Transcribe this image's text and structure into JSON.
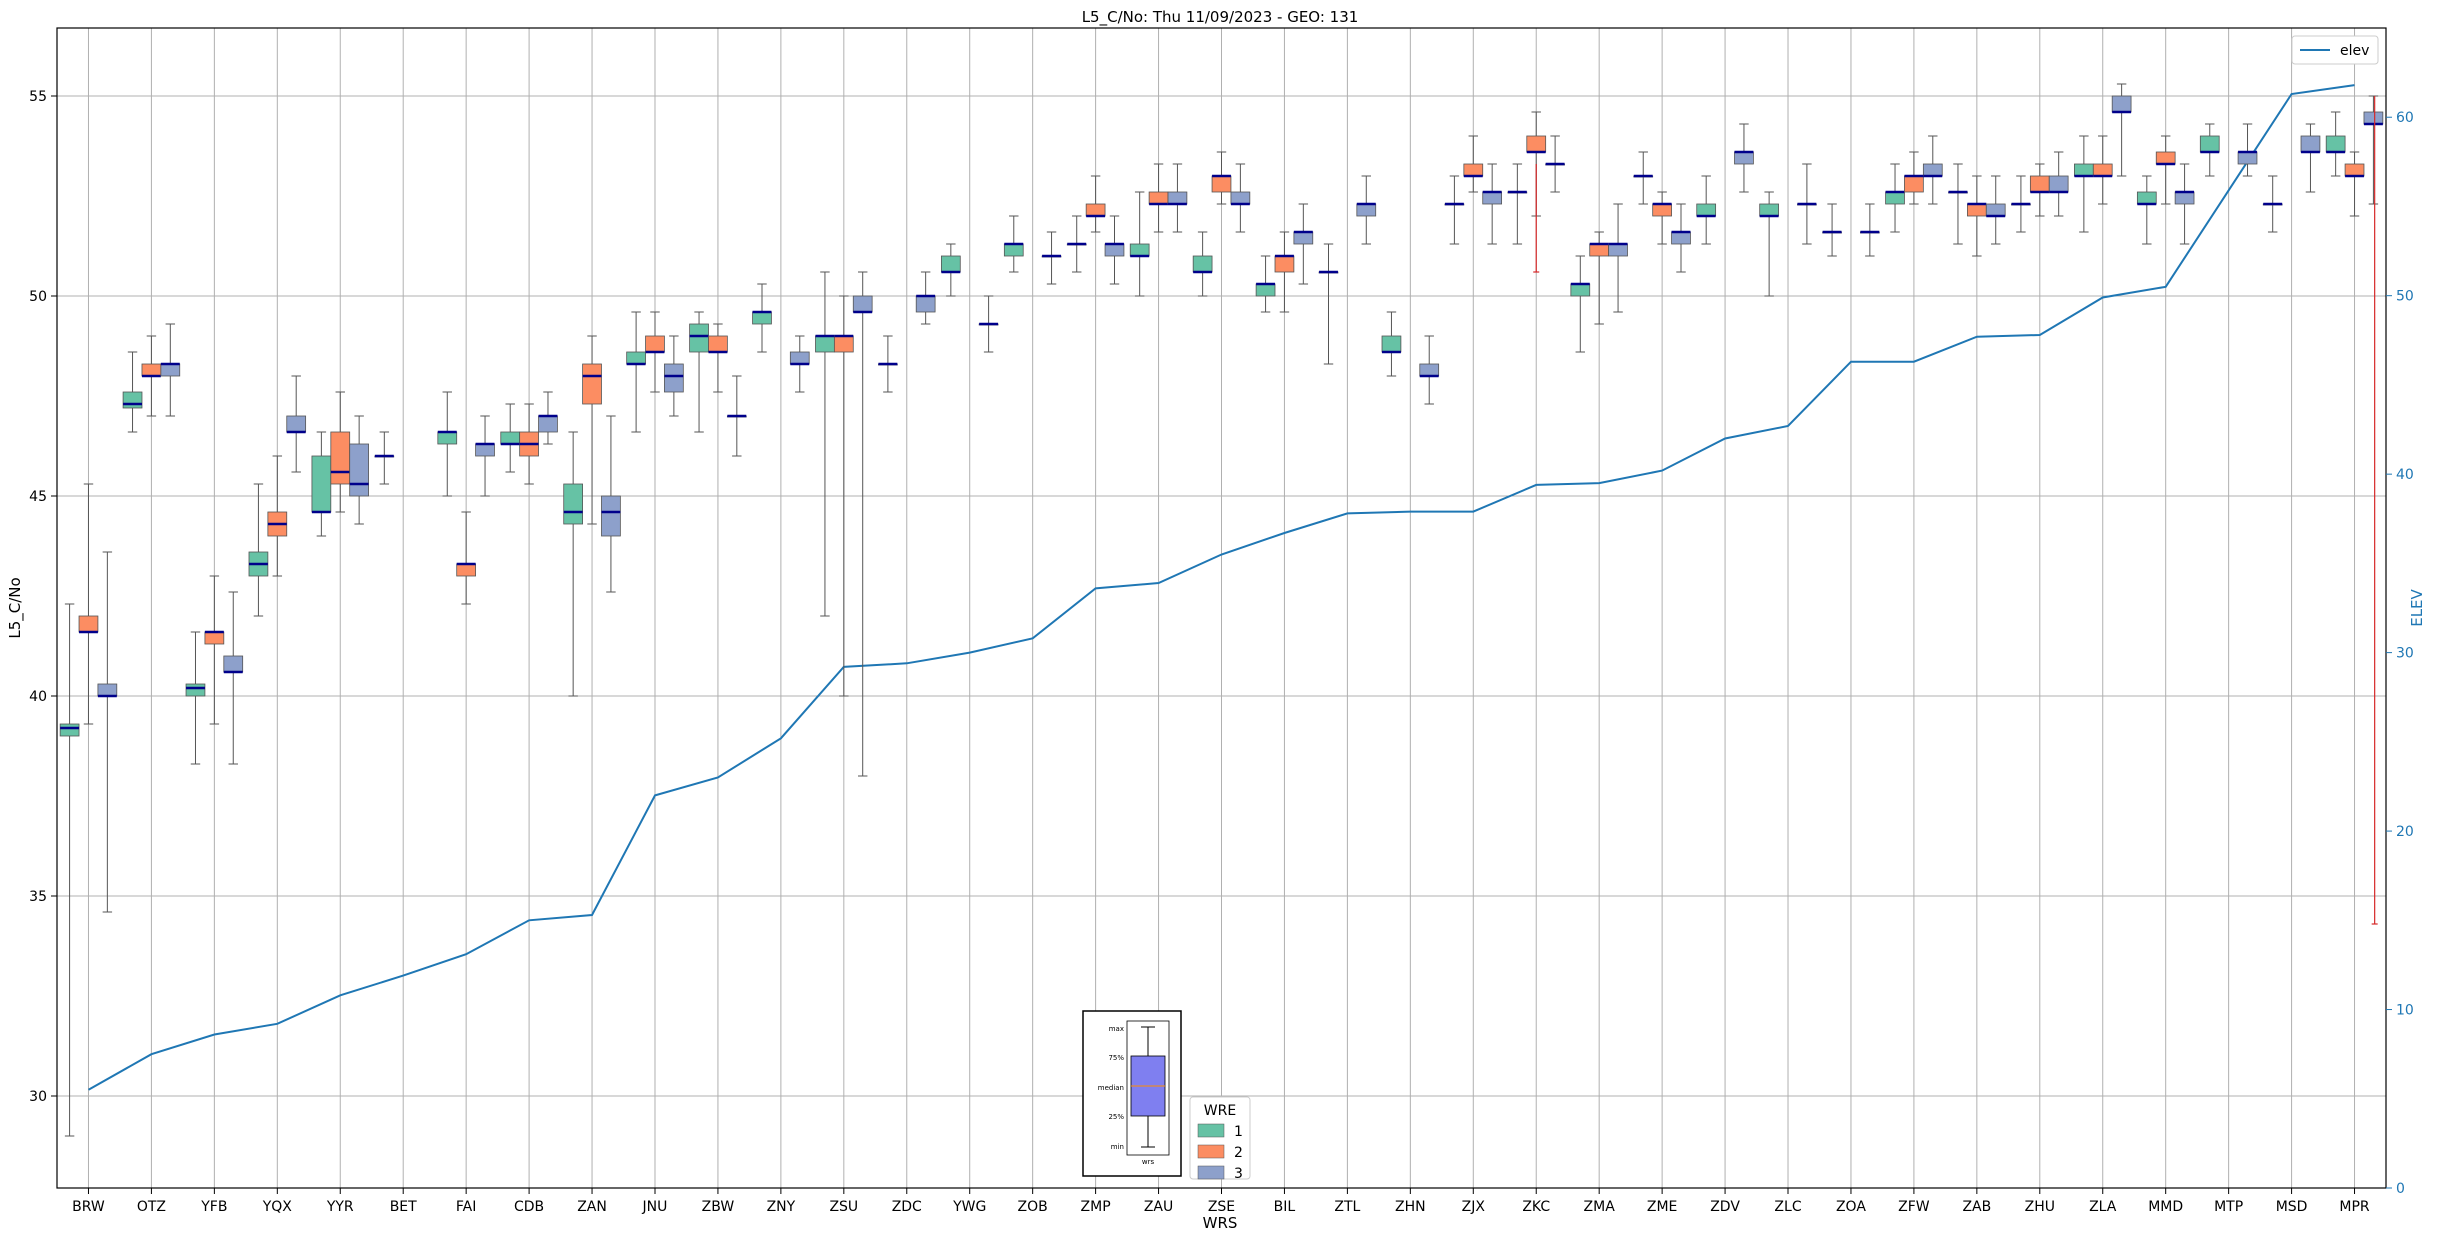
{
  "chart_data": {
    "type": "box",
    "title": "L5_C/No: Thu 11/09/2023 - GEO: 131",
    "xlabel": "WRS",
    "ylabel": "L5_C/No",
    "y2label": "ELEV",
    "ylim": [
      27.7,
      56.7
    ],
    "y2lim": [
      0,
      65
    ],
    "yticks": [
      30,
      35,
      40,
      45,
      50,
      55
    ],
    "y2ticks": [
      0,
      10,
      20,
      30,
      40,
      50,
      60
    ],
    "grid": true,
    "colors": {
      "1": "#66c2a5",
      "2": "#fc8d62",
      "3": "#8da0cb",
      "median": "#00008b",
      "elev": "#1f77b4",
      "whisker": "#555555",
      "outlier_whisker": "#d62728"
    },
    "stations": [
      "BRW",
      "OTZ",
      "YFB",
      "YQX",
      "YYR",
      "BET",
      "FAI",
      "CDB",
      "ZAN",
      "JNU",
      "ZBW",
      "ZNY",
      "ZSU",
      "ZDC",
      "YWG",
      "ZOB",
      "ZMP",
      "ZAU",
      "ZSE",
      "BIL",
      "ZTL",
      "ZHN",
      "ZJX",
      "ZKC",
      "ZMA",
      "ZME",
      "ZDV",
      "ZLC",
      "ZOA",
      "ZFW",
      "ZAB",
      "ZHU",
      "ZLA",
      "MMD",
      "MTP",
      "MSD",
      "MPR"
    ],
    "series": [
      {
        "name": "1",
        "boxes": [
          [
            0,
            29.0,
            39.0,
            39.2,
            39.3,
            42.3
          ],
          [
            1,
            46.6,
            47.2,
            47.3,
            47.6,
            48.6
          ],
          [
            2,
            38.3,
            40.0,
            40.2,
            40.3,
            41.6
          ],
          [
            3,
            42.0,
            43.0,
            43.3,
            43.6,
            45.3
          ],
          [
            4,
            44.0,
            44.6,
            44.6,
            46.0,
            46.6
          ],
          [
            5,
            45.3,
            46.0,
            46.0,
            46.0,
            46.6
          ],
          [
            6,
            45.0,
            46.3,
            46.6,
            46.6,
            47.6
          ],
          [
            7,
            45.6,
            46.3,
            46.3,
            46.6,
            47.3
          ],
          [
            8,
            40.0,
            44.3,
            44.6,
            45.3,
            46.6
          ],
          [
            9,
            46.6,
            48.3,
            48.3,
            48.6,
            49.6
          ],
          [
            10,
            46.6,
            48.6,
            49.0,
            49.3,
            49.6
          ],
          [
            11,
            48.6,
            49.3,
            49.6,
            49.6,
            50.3
          ],
          [
            12,
            42.0,
            48.6,
            49.0,
            49.0,
            50.6
          ],
          [
            13,
            47.6,
            48.3,
            48.3,
            48.3,
            49.0
          ],
          [
            14,
            50.0,
            50.6,
            50.6,
            51.0,
            51.3
          ],
          [
            15,
            50.6,
            51.0,
            51.3,
            51.3,
            52.0
          ],
          [
            16,
            50.6,
            51.3,
            51.3,
            51.3,
            52.0
          ],
          [
            17,
            50.0,
            51.0,
            51.0,
            51.3,
            52.6
          ],
          [
            18,
            50.0,
            50.6,
            50.6,
            51.0,
            51.6
          ],
          [
            19,
            49.6,
            50.0,
            50.3,
            50.3,
            51.0
          ],
          [
            20,
            48.3,
            50.6,
            50.6,
            50.6,
            51.3
          ],
          [
            21,
            48.0,
            48.6,
            48.6,
            49.0,
            49.6
          ],
          [
            22,
            51.3,
            52.3,
            52.3,
            52.3,
            53.0
          ],
          [
            23,
            51.3,
            52.6,
            52.6,
            52.6,
            53.3
          ],
          [
            24,
            48.6,
            50.0,
            50.3,
            50.3,
            51.0
          ],
          [
            25,
            52.3,
            53.0,
            53.0,
            53.0,
            53.6
          ],
          [
            26,
            51.3,
            52.0,
            52.0,
            52.3,
            53.0
          ],
          [
            27,
            50.0,
            52.0,
            52.0,
            52.3,
            52.6
          ],
          [
            28,
            51.0,
            51.6,
            51.6,
            51.6,
            52.3
          ],
          [
            29,
            51.6,
            52.3,
            52.6,
            52.6,
            53.3
          ],
          [
            30,
            51.3,
            52.6,
            52.6,
            52.6,
            53.3
          ],
          [
            31,
            51.6,
            52.3,
            52.3,
            52.3,
            53.0
          ],
          [
            32,
            51.6,
            53.0,
            53.0,
            53.3,
            54.0
          ],
          [
            33,
            51.3,
            52.3,
            52.3,
            52.6,
            53.0
          ],
          [
            34,
            53.0,
            53.6,
            53.6,
            54.0,
            54.3
          ],
          [
            35,
            51.6,
            52.3,
            52.3,
            52.3,
            53.0
          ],
          [
            36,
            53.0,
            53.6,
            53.6,
            54.0,
            54.6
          ]
        ]
      },
      {
        "name": "2",
        "boxes": [
          [
            0,
            39.3,
            41.6,
            41.6,
            42.0,
            45.3
          ],
          [
            1,
            47.0,
            48.0,
            48.0,
            48.3,
            49.0
          ],
          [
            2,
            39.3,
            41.3,
            41.6,
            41.6,
            43.0
          ],
          [
            3,
            43.0,
            44.0,
            44.3,
            44.6,
            46.0
          ],
          [
            4,
            44.6,
            45.3,
            45.6,
            46.6,
            47.6
          ],
          [
            6,
            42.3,
            43.0,
            43.3,
            43.3,
            44.6
          ],
          [
            7,
            45.3,
            46.0,
            46.3,
            46.6,
            47.3
          ],
          [
            8,
            44.3,
            47.3,
            48.0,
            48.3,
            49.0
          ],
          [
            9,
            47.6,
            48.6,
            48.6,
            49.0,
            49.6
          ],
          [
            10,
            47.6,
            48.6,
            48.6,
            49.0,
            49.3
          ],
          [
            12,
            40.0,
            48.6,
            49.0,
            49.0,
            50.0
          ],
          [
            16,
            51.6,
            52.0,
            52.0,
            52.3,
            53.0
          ],
          [
            17,
            51.6,
            52.3,
            52.3,
            52.6,
            53.3
          ],
          [
            18,
            52.3,
            52.6,
            53.0,
            53.0,
            53.6
          ],
          [
            19,
            49.6,
            50.6,
            51.0,
            51.0,
            51.6
          ],
          [
            22,
            52.6,
            53.0,
            53.0,
            53.3,
            54.0
          ],
          [
            23,
            52.0,
            53.6,
            53.6,
            54.0,
            54.6
          ],
          [
            24,
            49.3,
            51.0,
            51.3,
            51.3,
            51.6
          ],
          [
            25,
            51.3,
            52.0,
            52.3,
            52.3,
            52.6
          ],
          [
            29,
            52.3,
            52.6,
            53.0,
            53.0,
            53.6
          ],
          [
            30,
            51.0,
            52.0,
            52.3,
            52.3,
            53.0
          ],
          [
            31,
            52.0,
            52.6,
            52.6,
            53.0,
            53.3
          ],
          [
            32,
            52.3,
            53.0,
            53.0,
            53.3,
            54.0
          ],
          [
            33,
            52.3,
            53.3,
            53.3,
            53.6,
            54.0
          ],
          [
            36,
            52.0,
            53.0,
            53.0,
            53.3,
            53.6
          ]
        ]
      },
      {
        "name": "3",
        "boxes": [
          [
            0,
            34.6,
            40.0,
            40.0,
            40.3,
            43.6
          ],
          [
            1,
            47.0,
            48.0,
            48.3,
            48.3,
            49.3
          ],
          [
            2,
            38.3,
            40.6,
            40.6,
            41.0,
            42.6
          ],
          [
            3,
            45.6,
            46.6,
            46.6,
            47.0,
            48.0
          ],
          [
            4,
            44.3,
            45.0,
            45.3,
            46.3,
            47.0
          ],
          [
            6,
            45.0,
            46.0,
            46.3,
            46.3,
            47.0
          ],
          [
            7,
            46.3,
            46.6,
            47.0,
            47.0,
            47.6
          ],
          [
            8,
            42.6,
            44.0,
            44.6,
            45.0,
            47.0
          ],
          [
            9,
            47.0,
            47.6,
            48.0,
            48.3,
            49.0
          ],
          [
            10,
            46.0,
            47.0,
            47.0,
            47.0,
            48.0
          ],
          [
            11,
            47.6,
            48.3,
            48.3,
            48.6,
            49.0
          ],
          [
            12,
            38.0,
            49.6,
            49.6,
            50.0,
            50.6
          ],
          [
            13,
            49.3,
            49.6,
            50.0,
            50.0,
            50.6
          ],
          [
            14,
            48.6,
            49.3,
            49.3,
            49.3,
            50.0
          ],
          [
            15,
            50.3,
            51.0,
            51.0,
            51.0,
            51.6
          ],
          [
            16,
            50.3,
            51.0,
            51.3,
            51.3,
            52.0
          ],
          [
            17,
            51.6,
            52.3,
            52.3,
            52.6,
            53.3
          ],
          [
            18,
            51.6,
            52.3,
            52.3,
            52.6,
            53.3
          ],
          [
            19,
            50.3,
            51.3,
            51.6,
            51.6,
            52.3
          ],
          [
            20,
            51.3,
            52.0,
            52.3,
            52.3,
            53.0
          ],
          [
            21,
            47.3,
            48.0,
            48.0,
            48.3,
            49.0
          ],
          [
            22,
            51.3,
            52.3,
            52.6,
            52.6,
            53.3
          ],
          [
            23,
            52.6,
            53.3,
            53.3,
            53.3,
            54.0
          ],
          [
            24,
            49.6,
            51.0,
            51.3,
            51.3,
            52.3
          ],
          [
            25,
            50.6,
            51.3,
            51.6,
            51.6,
            52.3
          ],
          [
            26,
            52.6,
            53.3,
            53.6,
            53.6,
            54.3
          ],
          [
            27,
            51.3,
            52.3,
            52.3,
            52.3,
            53.3
          ],
          [
            28,
            51.0,
            51.6,
            51.6,
            51.6,
            52.3
          ],
          [
            29,
            52.3,
            53.0,
            53.0,
            53.3,
            54.0
          ],
          [
            30,
            51.3,
            52.0,
            52.0,
            52.3,
            53.0
          ],
          [
            31,
            52.0,
            52.6,
            52.6,
            53.0,
            53.6
          ],
          [
            32,
            53.0,
            54.6,
            54.6,
            55.0,
            55.3
          ],
          [
            33,
            51.3,
            52.3,
            52.6,
            52.6,
            53.3
          ],
          [
            34,
            53.0,
            53.3,
            53.6,
            53.6,
            54.3
          ],
          [
            35,
            52.6,
            53.6,
            53.6,
            54.0,
            54.3
          ],
          [
            36,
            52.3,
            54.3,
            54.3,
            54.6,
            55.0
          ]
        ]
      }
    ],
    "outlier_whiskers": [
      [
        23,
        50.6,
        53.3
      ],
      [
        36,
        34.3,
        55.0
      ]
    ],
    "elev": {
      "name": "elev",
      "x": [
        0,
        1,
        2,
        3,
        4,
        5,
        6,
        7,
        8,
        9,
        10,
        11,
        12,
        13,
        14,
        15,
        16,
        17,
        18,
        19,
        20,
        21,
        22,
        23,
        24,
        25,
        26,
        27,
        28,
        29,
        30,
        31,
        32,
        33,
        34,
        35,
        36
      ],
      "y": [
        5.5,
        7.5,
        8.6,
        9.2,
        10.8,
        11.9,
        13.1,
        15.0,
        15.3,
        22.0,
        23.0,
        25.2,
        29.2,
        29.4,
        30.0,
        30.8,
        33.6,
        33.9,
        35.5,
        36.7,
        37.8,
        37.9,
        37.9,
        39.4,
        39.5,
        40.2,
        42.0,
        42.7,
        46.3,
        46.3,
        47.7,
        47.8,
        49.9,
        50.5,
        55.9,
        61.3,
        61.8
      ]
    },
    "legend": {
      "title": "WRE",
      "entries": [
        "1",
        "2",
        "3"
      ],
      "line_entry": "elev"
    },
    "inset": {
      "labels": [
        "max",
        "75%",
        "median",
        "25%",
        "min"
      ],
      "xlabel": "wrs"
    }
  }
}
